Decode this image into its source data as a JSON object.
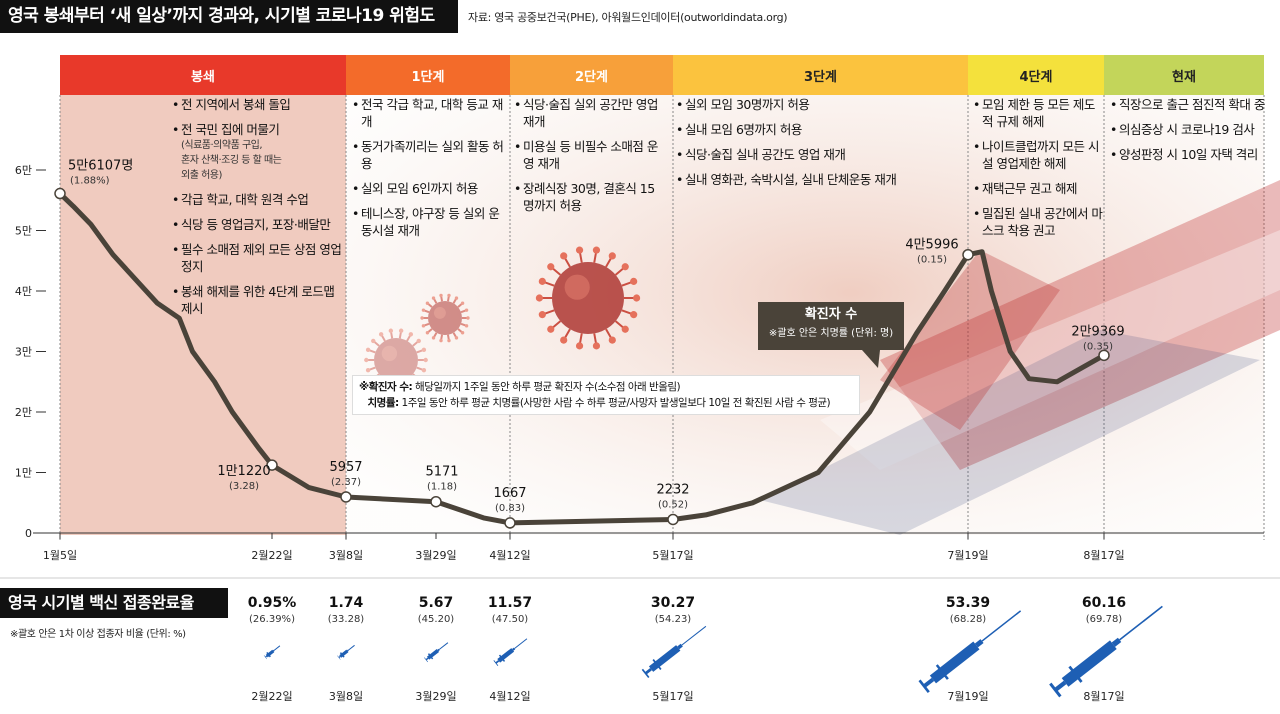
{
  "title": "영국 봉쇄부터 ‘새 일상’까지 경과와, 시기별 코로나19 위험도",
  "source": "자료: 영국 공중보건국(PHE), 아워월드인데이터(outworldindata.org)",
  "phases": [
    {
      "name": "봉쇄",
      "color": "#e8392a"
    },
    {
      "name": "1단계",
      "color": "#f36b2a"
    },
    {
      "name": "2단계",
      "color": "#f7a03a"
    },
    {
      "name": "3단계",
      "color": "#fbc33e"
    },
    {
      "name": "4단계",
      "color": "#f4e13c"
    },
    {
      "name": "현재",
      "color": "#c3d55a"
    }
  ],
  "phase_notes": {
    "lockdown": [
      {
        "text": "전 지역에서 봉쇄 돌입"
      },
      {
        "text": "전 국민 집에 머물기",
        "sub": [
          "(식료품·의약품 구입,",
          "혼자 산책·조깅 등 할 때는",
          "외출 허용)"
        ]
      },
      {
        "text": "각급 학교, 대학 원격 수업"
      },
      {
        "text": "식당 등 영업금지, 포장·배달만"
      },
      {
        "text": "필수 소매점 제외 모든 상점 영업정지"
      },
      {
        "text": "봉쇄 해제를 위한 4단계 로드맵 제시"
      }
    ],
    "step1": [
      {
        "text": "전국 각급 학교, 대학 등교 재개"
      },
      {
        "text": "동거가족끼리는 실외 활동 허용"
      },
      {
        "text": "실외 모임 6인까지 허용"
      },
      {
        "text": "테니스장, 야구장 등 실외 운동시설 재개"
      }
    ],
    "step2": [
      {
        "text": "식당·술집 실외 공간만 영업 재개"
      },
      {
        "text": "미용실 등 비필수 소매점 운영 재개"
      },
      {
        "text": "장례식장 30명, 결혼식 15명까지 허용"
      }
    ],
    "step3": [
      {
        "text": "실외 모임 30명까지 허용"
      },
      {
        "text": "실내 모임 6명까지 허용"
      },
      {
        "text": "식당·술집 실내 공간도 영업 재개"
      },
      {
        "text": "실내 영화관, 숙박시설, 실내 단체운동 재개"
      }
    ],
    "step4": [
      {
        "text": "모임 제한 등 모든 제도적 규제 해제"
      },
      {
        "text": "나이트클럽까지 모든 시설 영업제한 해제"
      },
      {
        "text": "재택근무 권고 해제"
      },
      {
        "text": "밀집된 실내 공간에서 마스크 착용 권고"
      }
    ],
    "now": [
      {
        "text": "직장으로 출근 점진적 확대 중"
      },
      {
        "text": "의심증상 시 코로나19 검사"
      },
      {
        "text": "양성판정 시 10일 자택 격리"
      }
    ]
  },
  "callout": {
    "title": "확진자 수",
    "sub": "※괄호 안은 치명률 (단위: 명)"
  },
  "legend": {
    "cases_label": "※확진자 수:",
    "cases_text": "해당일까지 1주일 동안 하루 평균 확진자 수(소수점 아래 반올림)",
    "fatality_label": "치명률:",
    "fatality_text": "1주일 동안 하루 평균 치명률(사망한 사람 수 하루 평균/사망자 발생일보다 10일 전 확진된 사람 수 평균)"
  },
  "vaccine": {
    "title": "영국 시기별 백신 접종완료율",
    "note": "※괄호 안은 1차 이상 접종자 비율 (단위: %)"
  },
  "colors": {
    "line": "#4a4339",
    "lockdown_bg": "#f0cbbf",
    "vaccine_blue": "#1e5fb4",
    "title_bg": "#111111"
  },
  "chart_data": [
    {
      "type": "line",
      "title": "확진자 수",
      "ylabel": "",
      "ylim": [
        0,
        60000
      ],
      "yticks": [
        "0",
        "1만",
        "2만",
        "3만",
        "4만",
        "5만",
        "6만"
      ],
      "xticks": [
        "1월5일",
        "2월22일",
        "3월8일",
        "3월29일",
        "4월12일",
        "5월17일",
        "7월19일",
        "8월17일"
      ],
      "series": [
        {
          "values": [
            {
              "x": "1월5일",
              "y": 56107
            },
            {
              "x": "1월8일",
              "y": 54000
            },
            {
              "x": "1월12일",
              "y": 51000
            },
            {
              "x": "1월17일",
              "y": 46000
            },
            {
              "x": "1월22일",
              "y": 42000
            },
            {
              "x": "1월27일",
              "y": 38000
            },
            {
              "x": "2월1일",
              "y": 35500
            },
            {
              "x": "2월4일",
              "y": 30000
            },
            {
              "x": "2월9일",
              "y": 25000
            },
            {
              "x": "2월13일",
              "y": 20000
            },
            {
              "x": "2월19일",
              "y": 14000
            },
            {
              "x": "2월22일",
              "y": 11220
            },
            {
              "x": "3월1일",
              "y": 7500
            },
            {
              "x": "3월8일",
              "y": 5957
            },
            {
              "x": "3월29일",
              "y": 5171
            },
            {
              "x": "4월7일",
              "y": 2500
            },
            {
              "x": "4월12일",
              "y": 1667
            },
            {
              "x": "5월17일",
              "y": 2232
            },
            {
              "x": "5월24일",
              "y": 3000
            },
            {
              "x": "6월3일",
              "y": 5000
            },
            {
              "x": "6월17일",
              "y": 10000
            },
            {
              "x": "6월28일",
              "y": 20000
            },
            {
              "x": "7월8일",
              "y": 33000
            },
            {
              "x": "7월14일",
              "y": 40000
            },
            {
              "x": "7월19일",
              "y": 45996
            },
            {
              "x": "7월22일",
              "y": 46500
            },
            {
              "x": "7월24일",
              "y": 40000
            },
            {
              "x": "7월28일",
              "y": 30000
            },
            {
              "x": "8월1일",
              "y": 25500
            },
            {
              "x": "8월7일",
              "y": 25000
            },
            {
              "x": "8월17일",
              "y": 29369
            }
          ]
        }
      ],
      "annotations": [
        {
          "x": "1월5일",
          "value": "5만6107명",
          "rate": "(1.88%)"
        },
        {
          "x": "2월22일",
          "value": "1만1220",
          "rate": "(3.28)"
        },
        {
          "x": "3월8일",
          "value": "5957",
          "rate": "(2.37)"
        },
        {
          "x": "3월29일",
          "value": "5171",
          "rate": "(1.18)"
        },
        {
          "x": "4월12일",
          "value": "1667",
          "rate": "(0.83)"
        },
        {
          "x": "5월17일",
          "value": "2232",
          "rate": "(0.52)"
        },
        {
          "x": "7월19일",
          "value": "4만5996",
          "rate": "(0.15)"
        },
        {
          "x": "8월17일",
          "value": "2만9369",
          "rate": "(0.35)"
        }
      ]
    },
    {
      "type": "bar",
      "title": "영국 시기별 백신 접종완료율",
      "categories": [
        "2월22일",
        "3월8일",
        "3월29일",
        "4월12일",
        "5월17일",
        "7월19일",
        "8월17일"
      ],
      "series": [
        {
          "values": [
            0.95,
            1.74,
            5.67,
            11.57,
            30.27,
            53.39,
            60.16
          ]
        },
        {
          "values": [
            26.39,
            33.28,
            45.2,
            47.5,
            54.23,
            68.28,
            69.78
          ]
        }
      ],
      "labels": [
        "0.95%",
        "1.74",
        "5.67",
        "11.57",
        "30.27",
        "53.39",
        "60.16"
      ],
      "sublabels": [
        "(26.39%)",
        "(33.28)",
        "(45.20)",
        "(47.50)",
        "(54.23)",
        "(68.28)",
        "(69.78)"
      ]
    }
  ]
}
